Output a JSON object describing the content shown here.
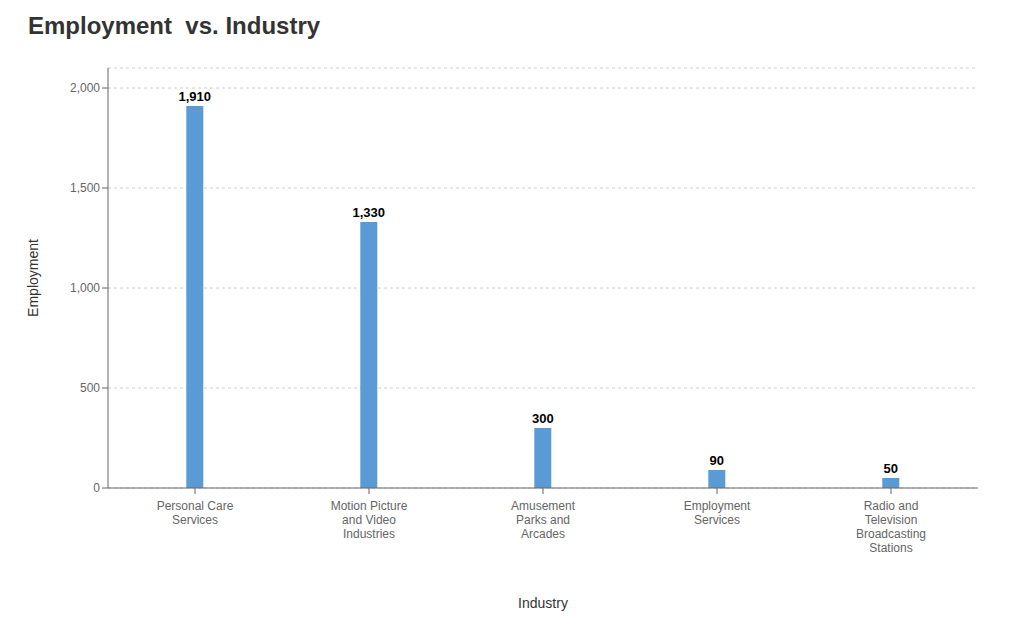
{
  "chart_data": {
    "type": "bar",
    "title": "Employment  vs. Industry",
    "xlabel": "Industry",
    "ylabel": "Employment",
    "categories": [
      "Personal Care\nServices",
      "Motion Picture\nand Video\nIndustries",
      "Amusement\nParks and\nArcades",
      "Employment\nServices",
      "Radio and\nTelevision\nBroadcasting\nStations"
    ],
    "values": [
      1910,
      1330,
      300,
      90,
      50
    ],
    "value_labels": [
      "1,910",
      "1,330",
      "300",
      "90",
      "50"
    ],
    "data_labels": true,
    "color": "#5B9BD5",
    "ylim": [
      0,
      2100
    ],
    "yticks": [
      0,
      500,
      {
        "value": 1000,
        "label": "1,000"
      },
      {
        "value": 1500,
        "label": "1,500"
      },
      {
        "value": 2000,
        "label": "2,000"
      }
    ],
    "grid": true
  }
}
